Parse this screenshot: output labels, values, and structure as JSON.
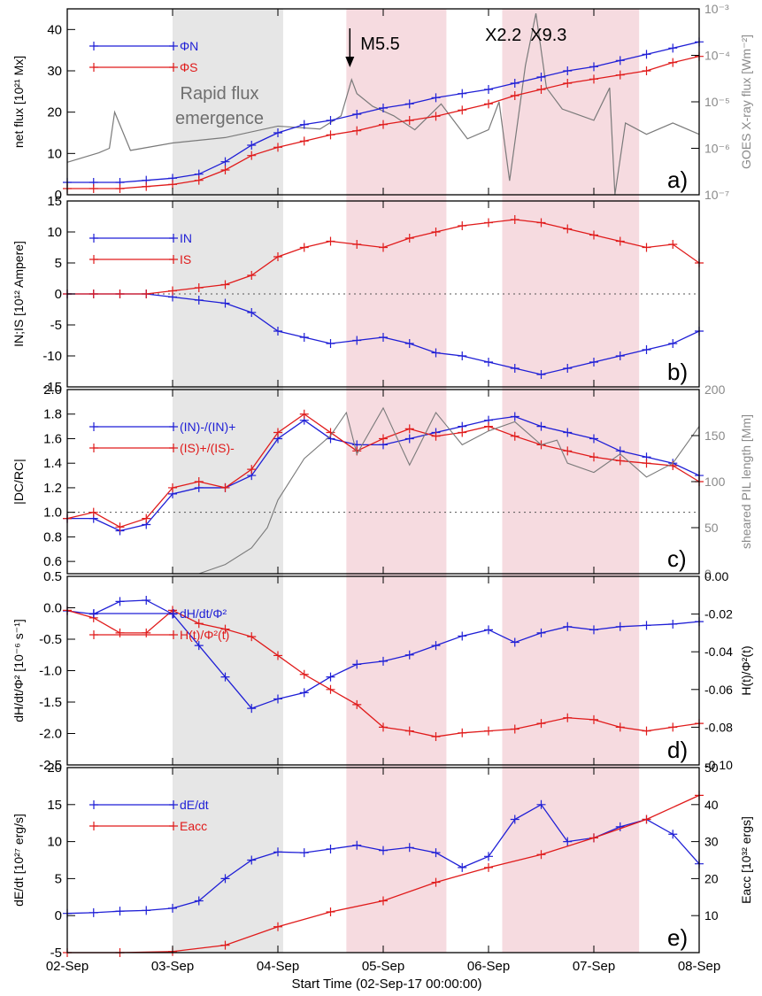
{
  "figure": {
    "x_ticks": [
      "02-Sep",
      "03-Sep",
      "04-Sep",
      "05-Sep",
      "06-Sep",
      "07-Sep",
      "08-Sep"
    ],
    "xlabel": "Start Time (02-Sep-17 00:00:00)",
    "shading": {
      "gray": {
        "label": "Rapid flux emergence",
        "from_day": 1.0,
        "to_day": 2.05,
        "color": "#e6e6e6"
      },
      "pink": [
        {
          "from_day": 2.65,
          "to_day": 3.6,
          "color": "#f6dbe0"
        },
        {
          "from_day": 4.13,
          "to_day": 5.43,
          "color": "#f6dbe0"
        }
      ]
    },
    "flare_labels": [
      {
        "text": "M5.5",
        "day": 2.7,
        "arrow": true
      },
      {
        "text": "X2.2",
        "day": 4.14
      },
      {
        "text": "X9.3",
        "day": 4.57
      }
    ],
    "colors": {
      "blue": "#1f1fd6",
      "red": "#e01b1b",
      "gray_line": "#7a7a7a",
      "gray_text": "#8a8a8a",
      "shade_gray": "#e6e6e6",
      "shade_pink": "#f6dbe0"
    }
  },
  "chart_data": [
    {
      "panel": "a)",
      "type": "line",
      "ylabel": "net flux [10²¹ Mx]",
      "y2label": "GOES X-ray flux [Wm⁻²]",
      "ylim": [
        0,
        45
      ],
      "yticks": [
        "0",
        "10",
        "20",
        "30",
        "40"
      ],
      "y2ticks": [
        "10⁻⁷",
        "10⁻⁶",
        "10⁻⁵",
        "10⁻⁴",
        "10⁻³"
      ],
      "y2log": true,
      "y2lim": [
        1e-07,
        0.001
      ],
      "series": [
        {
          "name": "ΦN",
          "color": "blue",
          "marker": "+",
          "x": [
            0,
            0.25,
            0.5,
            0.75,
            1.0,
            1.25,
            1.5,
            1.75,
            2.0,
            2.25,
            2.5,
            2.75,
            3.0,
            3.25,
            3.5,
            3.75,
            4.0,
            4.25,
            4.5,
            4.75,
            5.0,
            5.25,
            5.5,
            5.75,
            6.0
          ],
          "y": [
            3,
            3,
            3,
            3.5,
            4,
            5,
            8,
            12,
            15,
            17,
            18,
            19.5,
            21,
            22,
            23.5,
            24.5,
            25.5,
            27,
            28.5,
            30,
            31,
            32.5,
            34,
            35.5,
            37
          ]
        },
        {
          "name": "ΦS",
          "color": "red",
          "marker": "+",
          "x": [
            0,
            0.25,
            0.5,
            0.75,
            1.0,
            1.25,
            1.5,
            1.75,
            2.0,
            2.25,
            2.5,
            2.75,
            3.0,
            3.25,
            3.5,
            3.75,
            4.0,
            4.25,
            4.5,
            4.75,
            5.0,
            5.25,
            5.5,
            5.75,
            6.0
          ],
          "y": [
            1.5,
            1.5,
            1.5,
            2,
            2.5,
            3.5,
            6,
            9.5,
            11.5,
            13,
            14.5,
            15.5,
            17,
            18,
            19,
            20.5,
            22,
            24,
            25.5,
            27,
            28,
            29,
            30,
            32,
            33.5
          ]
        }
      ],
      "goes": {
        "name": "GOES",
        "color": "gray_line",
        "log": true,
        "x": [
          0,
          0.3,
          0.4,
          0.45,
          0.6,
          1.0,
          1.5,
          2.0,
          2.4,
          2.6,
          2.7,
          2.75,
          2.9,
          3.1,
          3.3,
          3.55,
          3.8,
          4.0,
          4.1,
          4.2,
          4.35,
          4.45,
          4.55,
          4.7,
          5.0,
          5.15,
          5.2,
          5.3,
          5.5,
          5.75,
          6.0
        ],
        "y": [
          5e-07,
          8e-07,
          1e-06,
          6e-06,
          9e-07,
          1.3e-06,
          1.7e-06,
          3e-06,
          2.6e-06,
          5e-06,
          3e-05,
          1.5e-05,
          8e-06,
          5e-06,
          2.5e-06,
          9e-06,
          1.6e-06,
          2.5e-06,
          1e-05,
          2e-07,
          6e-05,
          0.0008,
          2e-05,
          7e-06,
          4e-06,
          2e-05,
          1e-07,
          3.5e-06,
          2e-06,
          3.5e-06,
          2e-06
        ]
      }
    },
    {
      "panel": "b)",
      "type": "line",
      "ylabel": "IN;IS [10¹² Ampere]",
      "ylim": [
        -15,
        15
      ],
      "yticks": [
        "-15",
        "-10",
        "-5",
        "0",
        "5",
        "10",
        "15"
      ],
      "series": [
        {
          "name": "IN",
          "color": "blue",
          "marker": "+",
          "x": [
            0,
            0.25,
            0.5,
            0.75,
            1.0,
            1.25,
            1.5,
            1.75,
            2.0,
            2.25,
            2.5,
            2.75,
            3.0,
            3.25,
            3.5,
            3.75,
            4.0,
            4.25,
            4.5,
            4.75,
            5.0,
            5.25,
            5.5,
            5.75,
            6.0
          ],
          "y": [
            0,
            0,
            0,
            0,
            -0.5,
            -1,
            -1.5,
            -3,
            -6,
            -7,
            -8,
            -7.5,
            -7,
            -8,
            -9.5,
            -10,
            -11,
            -12,
            -13,
            -12,
            -11,
            -10,
            -9,
            -8,
            -6
          ]
        },
        {
          "name": "IS",
          "color": "red",
          "marker": "+",
          "x": [
            0,
            0.25,
            0.5,
            0.75,
            1.0,
            1.25,
            1.5,
            1.75,
            2.0,
            2.25,
            2.5,
            2.75,
            3.0,
            3.25,
            3.5,
            3.75,
            4.0,
            4.25,
            4.5,
            4.75,
            5.0,
            5.25,
            5.5,
            5.75,
            6.0
          ],
          "y": [
            0,
            0,
            0,
            0,
            0.5,
            1,
            1.5,
            3,
            6,
            7.5,
            8.5,
            8,
            7.5,
            9,
            10,
            11,
            11.5,
            12,
            11.5,
            10.5,
            9.5,
            8.5,
            7.5,
            8,
            5
          ]
        }
      ]
    },
    {
      "panel": "c)",
      "type": "line",
      "ylabel": "|DC/RC|",
      "y2label": "sheared PIL length [Mm]",
      "ylim": [
        0.5,
        2.0
      ],
      "yticks": [
        "0.6",
        "0.8",
        "1.0",
        "1.2",
        "1.4",
        "1.6",
        "1.8",
        "2.0"
      ],
      "y2lim": [
        0,
        200
      ],
      "y2ticks": [
        "0",
        "50",
        "100",
        "150",
        "200"
      ],
      "series": [
        {
          "name": "(IN)-/(IN)+",
          "color": "blue",
          "marker": "+",
          "x": [
            0,
            0.25,
            0.5,
            0.75,
            1.0,
            1.25,
            1.5,
            1.75,
            2.0,
            2.25,
            2.5,
            2.75,
            3.0,
            3.25,
            3.5,
            3.75,
            4.0,
            4.25,
            4.5,
            4.75,
            5.0,
            5.25,
            5.5,
            5.75,
            6.0
          ],
          "y": [
            0.95,
            0.95,
            0.85,
            0.9,
            1.15,
            1.2,
            1.2,
            1.3,
            1.6,
            1.75,
            1.6,
            1.55,
            1.55,
            1.6,
            1.65,
            1.7,
            1.75,
            1.78,
            1.7,
            1.65,
            1.6,
            1.5,
            1.45,
            1.4,
            1.3
          ]
        },
        {
          "name": "(IS)+/(IS)-",
          "color": "red",
          "marker": "+",
          "x": [
            0,
            0.25,
            0.5,
            0.75,
            1.0,
            1.25,
            1.5,
            1.75,
            2.0,
            2.25,
            2.5,
            2.75,
            3.0,
            3.25,
            3.5,
            3.75,
            4.0,
            4.25,
            4.5,
            4.75,
            5.0,
            5.25,
            5.5,
            5.75,
            6.0
          ],
          "y": [
            0.95,
            1.0,
            0.88,
            0.95,
            1.2,
            1.25,
            1.2,
            1.35,
            1.65,
            1.8,
            1.65,
            1.5,
            1.6,
            1.68,
            1.62,
            1.65,
            1.7,
            1.62,
            1.55,
            1.5,
            1.45,
            1.42,
            1.4,
            1.38,
            1.25
          ]
        },
        {
          "name": "sheared PIL",
          "color": "gray_line",
          "axis": "y2",
          "x": [
            1.25,
            1.5,
            1.75,
            1.9,
            2.0,
            2.25,
            2.5,
            2.65,
            2.75,
            3.0,
            3.25,
            3.5,
            3.75,
            4.0,
            4.25,
            4.5,
            4.65,
            4.75,
            5.0,
            5.25,
            5.5,
            5.75,
            6.0
          ],
          "y": [
            0,
            10,
            28,
            50,
            80,
            125,
            150,
            175,
            130,
            180,
            118,
            175,
            140,
            155,
            165,
            140,
            145,
            120,
            110,
            130,
            105,
            120,
            160
          ]
        }
      ]
    },
    {
      "panel": "d)",
      "type": "line",
      "ylabel": "dH/dt/Φ² [10⁻⁶ s⁻¹]",
      "y2label": "H(t)/Φ²(t)",
      "ylim": [
        -2.5,
        0.5
      ],
      "yticks": [
        "-2.5",
        "-2.0",
        "-1.5",
        "-1.0",
        "-0.5",
        "0.0",
        "0.5"
      ],
      "y2lim": [
        -0.1,
        0.0
      ],
      "y2ticks": [
        "-0.10",
        "-0.08",
        "-0.06",
        "-0.04",
        "-0.02",
        "0.00"
      ],
      "series": [
        {
          "name": "dH/dt/Φ²",
          "color": "blue",
          "marker": "+",
          "x": [
            0,
            0.25,
            0.5,
            0.75,
            1.0,
            1.25,
            1.5,
            1.75,
            2.0,
            2.25,
            2.5,
            2.75,
            3.0,
            3.25,
            3.5,
            3.75,
            4.0,
            4.25,
            4.5,
            4.75,
            5.0,
            5.25,
            5.5,
            5.75,
            6.0
          ],
          "y": [
            -0.05,
            -0.1,
            0.1,
            0.12,
            -0.1,
            -0.6,
            -1.1,
            -1.6,
            -1.45,
            -1.35,
            -1.1,
            -0.9,
            -0.85,
            -0.75,
            -0.6,
            -0.45,
            -0.35,
            -0.55,
            -0.4,
            -0.3,
            -0.35,
            -0.3,
            -0.28,
            -0.26,
            -0.22
          ]
        },
        {
          "name": "H(t)/Φ²(t)",
          "color": "red",
          "marker": "+",
          "axis": "y2",
          "x": [
            0,
            0.25,
            0.5,
            0.75,
            1.0,
            1.25,
            1.5,
            1.75,
            2.0,
            2.25,
            2.5,
            2.75,
            3.0,
            3.25,
            3.5,
            3.75,
            4.0,
            4.25,
            4.5,
            4.75,
            5.0,
            5.25,
            5.5,
            5.75,
            6.0
          ],
          "y": [
            -0.018,
            -0.022,
            -0.03,
            -0.03,
            -0.018,
            -0.025,
            -0.028,
            -0.032,
            -0.042,
            -0.052,
            -0.06,
            -0.068,
            -0.08,
            -0.082,
            -0.085,
            -0.083,
            -0.082,
            -0.081,
            -0.078,
            -0.075,
            -0.076,
            -0.08,
            -0.082,
            -0.08,
            -0.078
          ]
        }
      ]
    },
    {
      "panel": "e)",
      "type": "line",
      "ylabel": "dE/dt [10²⁷ erg/s]",
      "y2label": "Eacc [10³² ergs]",
      "ylim": [
        -5,
        20
      ],
      "yticks": [
        "-5",
        "0",
        "5",
        "10",
        "15",
        "20"
      ],
      "y2lim": [
        0,
        50
      ],
      "y2ticks": [
        "10",
        "20",
        "30",
        "40",
        "50"
      ],
      "series": [
        {
          "name": "dE/dt",
          "color": "blue",
          "marker": "+",
          "x": [
            0,
            0.25,
            0.5,
            0.75,
            1.0,
            1.25,
            1.5,
            1.75,
            2.0,
            2.25,
            2.5,
            2.75,
            3.0,
            3.25,
            3.5,
            3.75,
            4.0,
            4.25,
            4.5,
            4.75,
            5.0,
            5.25,
            5.5,
            5.75,
            6.0
          ],
          "y": [
            0.3,
            0.4,
            0.6,
            0.7,
            1.0,
            2.0,
            5.0,
            7.5,
            8.6,
            8.5,
            9.0,
            9.5,
            8.8,
            9.2,
            8.5,
            6.5,
            8.0,
            13.0,
            15.0,
            10.0,
            10.5,
            12.0,
            13.0,
            11.0,
            7.0
          ]
        },
        {
          "name": "Eacc",
          "color": "red",
          "marker": "+",
          "axis": "y2",
          "x": [
            0,
            0.5,
            1.0,
            1.5,
            2.0,
            2.5,
            3.0,
            3.5,
            4.0,
            4.5,
            5.0,
            5.5,
            6.0
          ],
          "y": [
            0,
            0,
            0.3,
            2.0,
            7.0,
            11.0,
            14.0,
            19.0,
            23.0,
            26.5,
            31.0,
            36.0,
            42.5
          ]
        }
      ]
    }
  ]
}
